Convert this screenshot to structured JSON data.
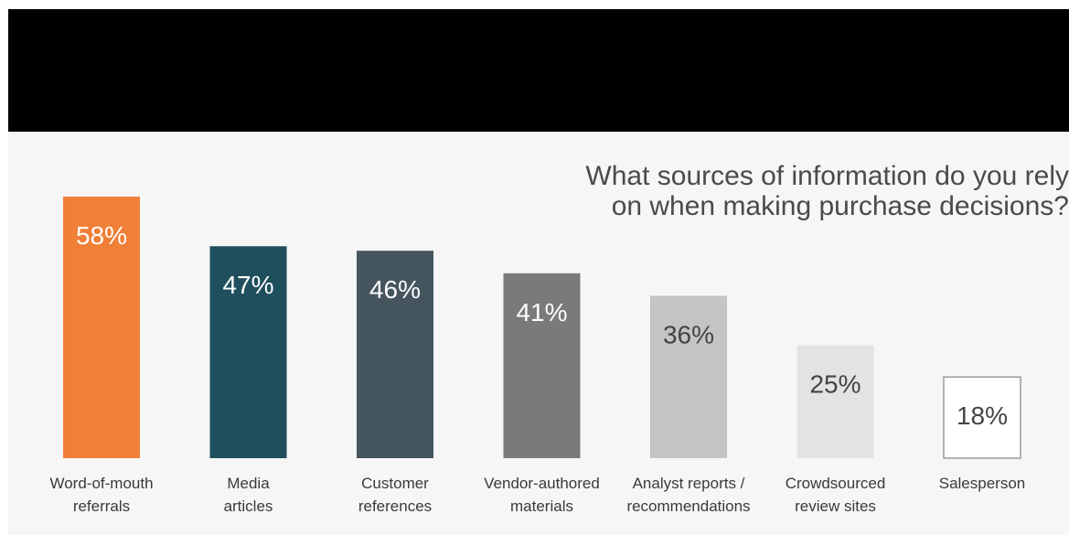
{
  "question": {
    "line1": "What sources of information do you rely",
    "line2": "on when making purchase decisions?"
  },
  "chart_data": {
    "type": "bar",
    "categories": [
      [
        "Word-of-mouth",
        "referrals"
      ],
      [
        "Media",
        "articles"
      ],
      [
        "Customer",
        "references"
      ],
      [
        "Vendor-authored",
        "materials"
      ],
      [
        "Analyst reports /",
        "recommendations"
      ],
      [
        "Crowdsourced",
        "review sites"
      ],
      [
        "Salesperson"
      ]
    ],
    "values": [
      58,
      47,
      46,
      41,
      36,
      25,
      18
    ],
    "value_labels": [
      "58%",
      "47%",
      "46%",
      "41%",
      "36%",
      "25%",
      "18%"
    ],
    "ylim": [
      0,
      58
    ],
    "grid": false,
    "legend": "none",
    "colors": [
      "#f07f38",
      "#1f4f5c",
      "#45555e",
      "#7a7a7a",
      "#c4c4c4",
      "#e3e3e3",
      "#ffffff"
    ],
    "label_colors": [
      "#ffffff",
      "#ffffff",
      "#ffffff",
      "#ffffff",
      "#444444",
      "#444444",
      "#444444"
    ]
  }
}
